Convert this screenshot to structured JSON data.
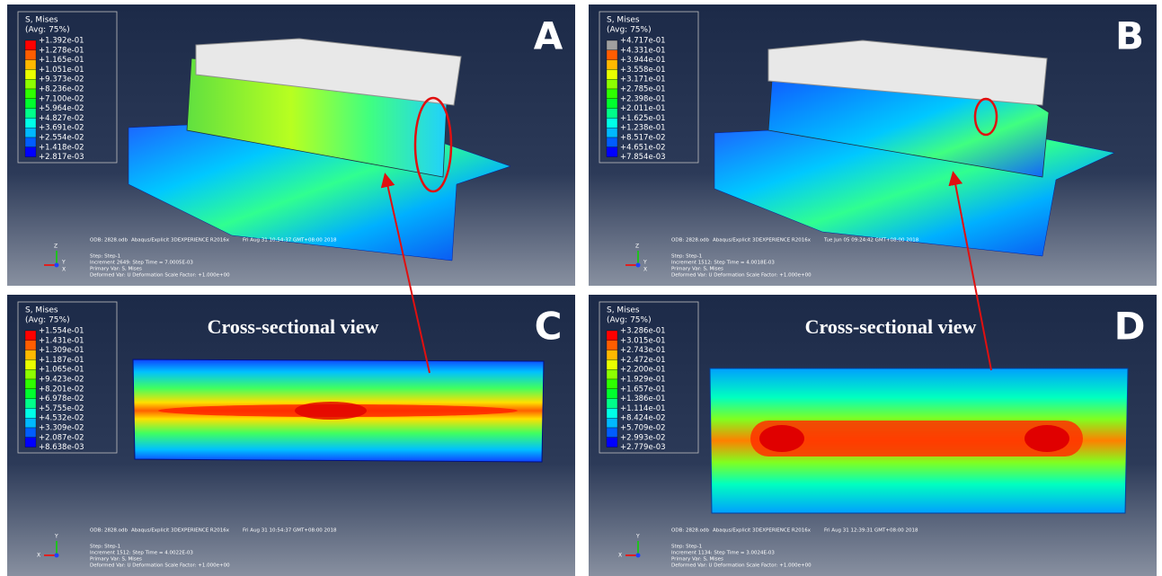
{
  "panels": [
    {
      "letter": "A",
      "legend": {
        "title": "S, Mises",
        "subtitle": "(Avg: 75%)",
        "values": [
          "+1.392e-01",
          "+1.278e-01",
          "+1.165e-01",
          "+1.051e-01",
          "+9.373e-02",
          "+8.236e-02",
          "+7.100e-02",
          "+5.964e-02",
          "+4.827e-02",
          "+3.691e-02",
          "+2.554e-02",
          "+1.418e-02",
          "+2.817e-03"
        ]
      },
      "footer": {
        "odb": "ODB: 2828.odb",
        "solver": "Abaqus/Explicit 3DEXPERIENCE R2016x",
        "date": "Fri Aug 31 10:54:37 GMT+08:00 2018",
        "step": "Step: Step-1",
        "increment": "Increment    2649: Step Time =    7.0005E-03",
        "primary": "Primary Var: S, Mises",
        "deformed": "Deformed Var: U   Deformation Scale Factor: +1.000e+00"
      },
      "axes": [
        "Z",
        "Y",
        "X"
      ]
    },
    {
      "letter": "B",
      "legend": {
        "title": "S, Mises",
        "subtitle": "(Avg: 75%)",
        "values": [
          "+4.717e-01",
          "+4.331e-01",
          "+3.944e-01",
          "+3.558e-01",
          "+3.171e-01",
          "+2.785e-01",
          "+2.398e-01",
          "+2.011e-01",
          "+1.625e-01",
          "+1.238e-01",
          "+8.517e-02",
          "+4.651e-02",
          "+7.854e-03"
        ]
      },
      "footer": {
        "odb": "ODB: 2828.odb",
        "solver": "Abaqus/Explicit 3DEXPERIENCE R2016x",
        "date": "Tue Jun 05 09:24:42 GMT+08:00 2018",
        "step": "Step: Step-1",
        "increment": "Increment    1512: Step Time =    4.0018E-03",
        "primary": "Primary Var: S, Mises",
        "deformed": "Deformed Var: U   Deformation Scale Factor: +1.000e+00"
      },
      "axes": [
        "Z",
        "Y",
        "X"
      ]
    },
    {
      "letter": "C",
      "caption": "Cross-sectional view",
      "legend": {
        "title": "S, Mises",
        "subtitle": "(Avg: 75%)",
        "values": [
          "+1.554e-01",
          "+1.431e-01",
          "+1.309e-01",
          "+1.187e-01",
          "+1.065e-01",
          "+9.423e-02",
          "+8.201e-02",
          "+6.978e-02",
          "+5.755e-02",
          "+4.532e-02",
          "+3.309e-02",
          "+2.087e-02",
          "+8.638e-03"
        ]
      },
      "footer": {
        "odb": "ODB: 2828.odb",
        "solver": "Abaqus/Explicit 3DEXPERIENCE R2016x",
        "date": "Fri Aug 31 10:54:37 GMT+08:00 2018",
        "step": "Step: Step-1",
        "increment": "Increment    1512: Step Time =    4.0022E-03",
        "primary": "Primary Var: S, Mises",
        "deformed": "Deformed Var: U   Deformation Scale Factor: +1.000e+00"
      },
      "axes": [
        "Y",
        "X"
      ]
    },
    {
      "letter": "D",
      "caption": "Cross-sectional view",
      "legend": {
        "title": "S, Mises",
        "subtitle": "(Avg: 75%)",
        "values": [
          "+3.286e-01",
          "+3.015e-01",
          "+2.743e-01",
          "+2.472e-01",
          "+2.200e-01",
          "+1.929e-01",
          "+1.657e-01",
          "+1.386e-01",
          "+1.114e-01",
          "+8.424e-02",
          "+5.709e-02",
          "+2.993e-02",
          "+2.779e-03"
        ]
      },
      "footer": {
        "odb": "ODB: 2828.odb",
        "solver": "Abaqus/Explicit 3DEXPERIENCE R2016x",
        "date": "Fri Aug 31 12:39:31 GMT+08:00 2018",
        "step": "Step: Step-1",
        "increment": "Increment    1134: Step Time =    3.0024E-03",
        "primary": "Primary Var: S, Mises",
        "deformed": "Deformed Var: U   Deformation Scale Factor: +1.000e+00"
      },
      "axes": [
        "Y",
        "X"
      ]
    }
  ]
}
